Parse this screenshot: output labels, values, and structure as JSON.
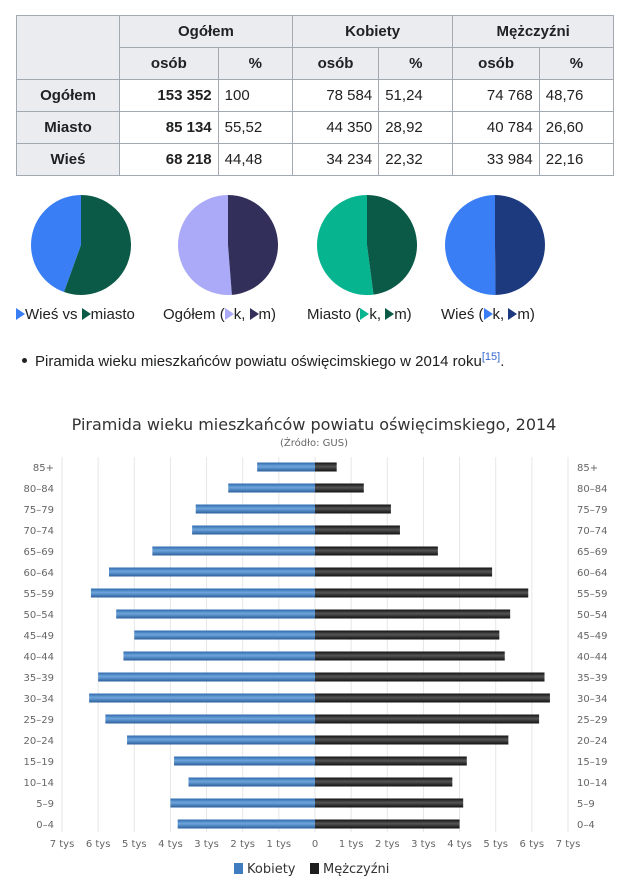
{
  "table": {
    "headers_top": [
      "Ogółem",
      "Kobiety",
      "Mężczyźni"
    ],
    "headers_sub": [
      "osób",
      "%",
      "osób",
      "%",
      "osób",
      "%"
    ],
    "rows": [
      {
        "label": "Ogółem",
        "cells": [
          "153 352",
          "100",
          "78 584",
          "51,24",
          "74 768",
          "48,76"
        ]
      },
      {
        "label": "Miasto",
        "cells": [
          "85 134",
          "55,52",
          "44 350",
          "28,92",
          "40 784",
          "26,60"
        ]
      },
      {
        "label": "Wieś",
        "cells": [
          "68 218",
          "44,48",
          "34 234",
          "22,32",
          "33 984",
          "22,16"
        ]
      }
    ]
  },
  "pies": [
    {
      "values": [
        44.48,
        55.52
      ],
      "colors": [
        "#3a7ef5",
        "#0b5a47"
      ],
      "label_parts": [
        "Wieś vs ",
        "miasto"
      ]
    },
    {
      "values": [
        51.24,
        48.76
      ],
      "colors": [
        "#aaaaf8",
        "#32305a"
      ],
      "label_parts": [
        "Ogółem (",
        "k, ",
        "m)"
      ]
    },
    {
      "values": [
        52.09,
        47.91
      ],
      "colors": [
        "#06b58f",
        "#0b5a47"
      ],
      "label_parts": [
        "Miasto (",
        "k, ",
        "m)"
      ]
    },
    {
      "values": [
        50.18,
        49.82
      ],
      "colors": [
        "#3a7ef5",
        "#1e3a7e"
      ],
      "label_parts": [
        "Wieś (",
        "k, ",
        "m)"
      ]
    }
  ],
  "bullet": {
    "text": "Piramida wieku mieszkańców powiatu oświęcimskiego w 2014 roku",
    "ref": "[15]",
    "after": "."
  },
  "chart_data": {
    "type": "bar",
    "title": "Piramida wieku mieszkańców powiatu oświęcimskiego, 2014",
    "subtitle": "(Źródło: GUS)",
    "categories": [
      "85+",
      "80–84",
      "75–79",
      "70–74",
      "65–69",
      "60–64",
      "55–59",
      "50–54",
      "45–49",
      "40–44",
      "35–39",
      "30–34",
      "25–29",
      "20–24",
      "15–19",
      "10–14",
      "5–9",
      "0–4"
    ],
    "series": [
      {
        "name": "Kobiety",
        "color": "#3f7cc0",
        "values": [
          1600,
          2400,
          3300,
          3400,
          4500,
          5700,
          6200,
          5500,
          5000,
          5300,
          6000,
          6250,
          5800,
          5200,
          3900,
          3500,
          4000,
          3800
        ]
      },
      {
        "name": "Mężczyźni",
        "color": "#1e1e1e",
        "values": [
          600,
          1350,
          2100,
          2350,
          3400,
          4900,
          5900,
          5400,
          5100,
          5250,
          6350,
          6500,
          6200,
          5350,
          4200,
          3800,
          4100,
          4000
        ]
      }
    ],
    "xlim": [
      -7000,
      7000
    ],
    "x_ticks": [
      "7 tys",
      "6 tys",
      "5 tys",
      "4 tys",
      "3 tys",
      "2 tys",
      "1 tys",
      "0",
      "1 tys",
      "2 tys",
      "3 tys",
      "4 tys",
      "5 tys",
      "6 tys",
      "7 tys"
    ],
    "grid": true,
    "legend": "bottom"
  }
}
